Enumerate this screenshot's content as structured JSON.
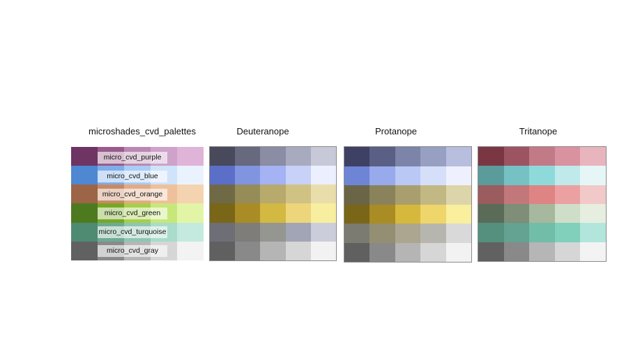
{
  "panels": [
    {
      "title": "microshades_cvd_palettes",
      "bordered": false,
      "labels": [
        "micro_cvd_purple",
        "micro_cvd_blue",
        "micro_cvd_orange",
        "micro_cvd_green",
        "micro_cvd_turquoise",
        "micro_cvd_gray"
      ],
      "colors": [
        [
          "#6e3464",
          "#9a5b8c",
          "#b988b1",
          "#cea2c9",
          "#e0b4d9"
        ],
        [
          "#4e87d2",
          "#7eaee9",
          "#a9cdf4",
          "#cfe3fa",
          "#eaf3fd"
        ],
        [
          "#9c6548",
          "#c88a64",
          "#e3aa84",
          "#eec09c",
          "#f4d3b0"
        ],
        [
          "#4d7a1f",
          "#77a824",
          "#a6cf49",
          "#c8e77a",
          "#e2f5a6"
        ],
        [
          "#4f8a72",
          "#6eaa92",
          "#8ec6b2",
          "#aadbcb",
          "#c4eadf"
        ],
        [
          "#616161",
          "#8a8a8a",
          "#b6b6b6",
          "#d6d6d6",
          "#f3f3f3"
        ]
      ]
    },
    {
      "title": "Deuteranope",
      "bordered": true,
      "labels": [],
      "colors": [
        [
          "#48495b",
          "#67697e",
          "#8a8da4",
          "#a8abbf",
          "#c7c9d8"
        ],
        [
          "#5b6fc8",
          "#8094e0",
          "#a5b3f4",
          "#c8d1f8",
          "#eceffd"
        ],
        [
          "#6f6a45",
          "#958c58",
          "#b7aa6c",
          "#d0c283",
          "#e9ddac"
        ],
        [
          "#7a6619",
          "#a98c25",
          "#d3b842",
          "#ecd57a",
          "#f8ee9f"
        ],
        [
          "#6d6e76",
          "#7e7d79",
          "#969690",
          "#a1a5b5",
          "#cccdda"
        ],
        [
          "#606060",
          "#898989",
          "#b5b5b5",
          "#d6d6d6",
          "#f2f2f2"
        ]
      ]
    },
    {
      "title": "Protanope",
      "bordered": true,
      "labels": [],
      "colors": [
        [
          "#3e4164",
          "#5a5f86",
          "#7c84a9",
          "#979fc2",
          "#b7bede"
        ],
        [
          "#6e85d6",
          "#98aaeb",
          "#bac8f6",
          "#d6dffa",
          "#eef1fd"
        ],
        [
          "#6a6546",
          "#8a825a",
          "#a99f6e",
          "#c2b884",
          "#ddd5aa"
        ],
        [
          "#7a6619",
          "#a98c24",
          "#d6b83c",
          "#efd66b",
          "#f9ef9d"
        ],
        [
          "#7b7b72",
          "#948f73",
          "#aca590",
          "#b7b6ae",
          "#d9d9d9"
        ],
        [
          "#606060",
          "#898989",
          "#b5b5b5",
          "#d6d6d6",
          "#f2f2f2"
        ]
      ]
    },
    {
      "title": "Tritanope",
      "bordered": true,
      "labels": [],
      "colors": [
        [
          "#7a3743",
          "#9c5462",
          "#c27a87",
          "#d992a0",
          "#e8b5bf"
        ],
        [
          "#5c9b9c",
          "#75c1c3",
          "#8edadb",
          "#c0e9eb",
          "#e6f6f7"
        ],
        [
          "#9a5c5f",
          "#c2777a",
          "#df8484",
          "#eba1a1",
          "#f1c9c9"
        ],
        [
          "#5a6b58",
          "#7e8e78",
          "#a6b89d",
          "#cfdec8",
          "#e6eedf"
        ],
        [
          "#55907f",
          "#64a291",
          "#72bda8",
          "#80d0bb",
          "#b2e6dc"
        ],
        [
          "#616161",
          "#898989",
          "#b6b6b6",
          "#d6d6d6",
          "#f3f3f3"
        ]
      ]
    }
  ]
}
